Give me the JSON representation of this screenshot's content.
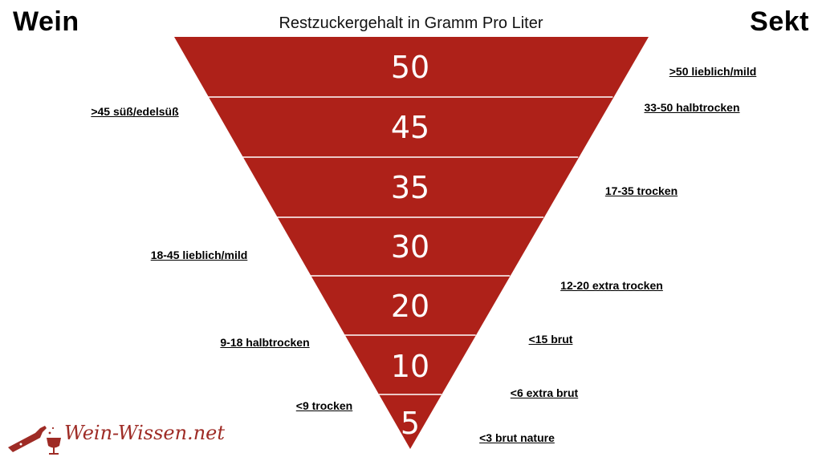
{
  "headings": {
    "left": "Wein",
    "right": "Sekt"
  },
  "subtitle": "Restzuckergehalt in Gramm Pro Liter",
  "levels": [
    "50",
    "45",
    "35",
    "30",
    "20",
    "10",
    "5"
  ],
  "wein_labels": [
    ">45 süß/edelsüß",
    "18-45 lieblich/mild",
    "9-18 halbtrocken",
    "<9 trocken"
  ],
  "sekt_labels": [
    ">50 lieblich/mild",
    "33-50 halbtrocken",
    "17-35 trocken",
    "12-20 extra trocken",
    "<15 brut",
    "<6 extra brut",
    "<3 brut nature"
  ],
  "logo": {
    "text": "Wein-Wissen.net"
  },
  "colors": {
    "funnel": "#ae2119",
    "logo": "#9e2b25"
  }
}
